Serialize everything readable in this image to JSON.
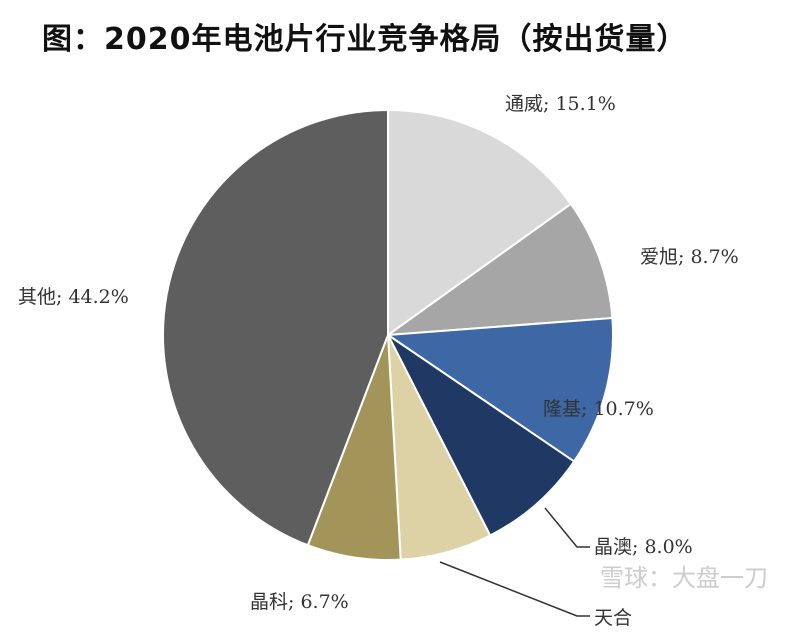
{
  "chart_data": {
    "type": "pie",
    "title": "图：2020年电池片行业竞争格局（按出货量）",
    "start": "12 o'clock, clockwise",
    "slices": [
      {
        "name": "通威",
        "value": 15.1,
        "label": "通威; 15.1%",
        "color": "#d9d9d9"
      },
      {
        "name": "爱旭",
        "value": 8.7,
        "label": "爱旭; 8.7%",
        "color": "#a6a6a6"
      },
      {
        "name": "隆基",
        "value": 10.7,
        "label": "隆基; 10.7%",
        "color": "#3d67a5"
      },
      {
        "name": "晶澳",
        "value": 8.0,
        "label": "晶澳; 8.0%",
        "color": "#1f3864"
      },
      {
        "name": "天合",
        "value": 6.6,
        "label": "天合",
        "color": "#ddd2a6"
      },
      {
        "name": "晶科",
        "value": 6.7,
        "label": "晶科; 6.7%",
        "color": "#a39459"
      },
      {
        "name": "其他",
        "value": 44.2,
        "label": "其他; 44.2%",
        "color": "#5e5e5e"
      }
    ]
  },
  "watermark": "雪球：大盘一刀"
}
